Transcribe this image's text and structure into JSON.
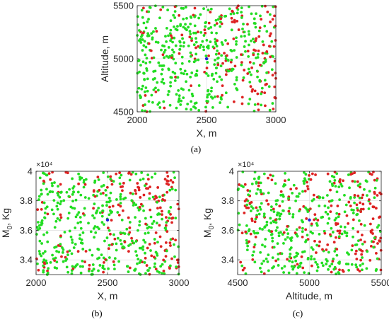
{
  "colors": {
    "feasible": "#22dd22",
    "infeasible": "#dd2222",
    "nominal": "#2020dd",
    "axis": "#262626",
    "grid": "#d9d9d9"
  },
  "chart_data": [
    {
      "id": "a",
      "type": "scatter",
      "caption": "(a)",
      "xlabel": "X, m",
      "ylabel": "Altitude, m",
      "xlim": [
        2000,
        3000
      ],
      "ylim": [
        4500,
        5500
      ],
      "xticks": [
        2000,
        2500,
        3000
      ],
      "yticks": [
        4500,
        5000,
        5500
      ],
      "xtick_labels": [
        "2000",
        "2500",
        "3000"
      ],
      "ytick_labels": [
        "4500",
        "5000",
        "5500"
      ],
      "exponent_label": "",
      "grid": true,
      "nominal_point": {
        "x": 2500,
        "y": 5000
      },
      "seed": 11
    },
    {
      "id": "b",
      "type": "scatter",
      "caption": "(b)",
      "xlabel": "X, m",
      "ylabel_main": "M",
      "ylabel_sub": "0",
      "ylabel_rest": ", Kg",
      "xlim": [
        2000,
        3000
      ],
      "ylim": [
        33000,
        40000
      ],
      "xticks": [
        2000,
        2500,
        3000
      ],
      "yticks": [
        34000,
        36000,
        38000,
        40000
      ],
      "xtick_labels": [
        "2000",
        "2500",
        "3000"
      ],
      "ytick_labels": [
        "3.4",
        "3.6",
        "3.8",
        "4"
      ],
      "exponent_label": "×10⁴",
      "grid": true,
      "nominal_point": {
        "x": 2500,
        "y": 36700
      },
      "seed": 23
    },
    {
      "id": "c",
      "type": "scatter",
      "caption": "(c)",
      "xlabel": "Altitude, m",
      "ylabel_main": "M",
      "ylabel_sub": "0",
      "ylabel_rest": ", Kg",
      "xlim": [
        4500,
        5500
      ],
      "ylim": [
        33000,
        40000
      ],
      "xticks": [
        4500,
        5000,
        5500
      ],
      "yticks": [
        34000,
        36000,
        38000,
        40000
      ],
      "xtick_labels": [
        "4500",
        "5000",
        "5500"
      ],
      "ytick_labels": [
        "3.4",
        "3.6",
        "3.8",
        "4"
      ],
      "exponent_label": "×10⁴",
      "grid": true,
      "nominal_point": {
        "x": 5000,
        "y": 36700
      },
      "seed": 37
    }
  ]
}
